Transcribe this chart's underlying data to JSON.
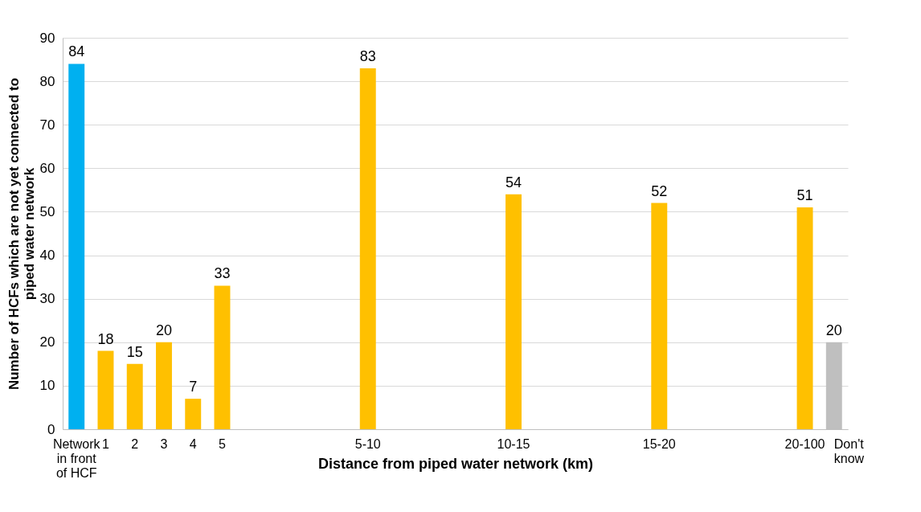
{
  "chart_data": {
    "type": "bar",
    "xlabel": "Distance from piped water network (km)",
    "ylabel": "Number of HCFs which are not yet connected to piped water network",
    "categories": [
      "Network in front of HCF",
      "1",
      "2",
      "3",
      "4",
      "5",
      null,
      null,
      null,
      null,
      "5-10",
      null,
      null,
      null,
      null,
      "10-15",
      null,
      null,
      null,
      null,
      "15-20",
      null,
      null,
      null,
      null,
      "20-100",
      "Don't know"
    ],
    "values": [
      84,
      18,
      15,
      20,
      7,
      33,
      null,
      null,
      null,
      null,
      83,
      null,
      null,
      null,
      null,
      54,
      null,
      null,
      null,
      null,
      52,
      null,
      null,
      null,
      null,
      51,
      20
    ],
    "colors": [
      "#00b0f0",
      "#ffc000",
      "#ffc000",
      "#ffc000",
      "#ffc000",
      "#ffc000",
      null,
      null,
      null,
      null,
      "#ffc000",
      null,
      null,
      null,
      null,
      "#ffc000",
      null,
      null,
      null,
      null,
      "#ffc000",
      null,
      null,
      null,
      null,
      "#ffc000",
      "#bfbfbf"
    ],
    "ylim": [
      0,
      90
    ],
    "yticks": [
      0,
      10,
      20,
      30,
      40,
      50,
      60,
      70,
      80,
      90
    ],
    "grid": "y",
    "data_labels": true
  }
}
